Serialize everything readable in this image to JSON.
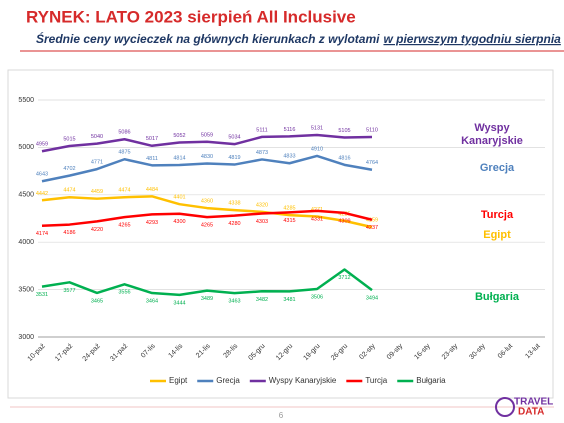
{
  "chart_data": {
    "type": "line",
    "title": "RYNEK: LATO 2023 sierpień All Inclusive",
    "subtitle": [
      "Średnie ceny wycieczek na głównych kierunkach z wylotami",
      "w pierwszym tygodniu sierpnia"
    ],
    "categories": [
      "10-paź",
      "17-paź",
      "24-paź",
      "31-paź",
      "07-lis",
      "14-lis",
      "21-lis",
      "28-lis",
      "05-gru",
      "12-gru",
      "19-gru",
      "26-gru",
      "02-sty",
      "09-sty",
      "16-sty",
      "23-sty",
      "30-sty",
      "06-lut",
      "13-lut"
    ],
    "series": [
      {
        "name": "Egipt",
        "color": "#ffc000",
        "values": [
          4442,
          4474,
          4459,
          4474,
          4484,
          4401,
          4360,
          4338,
          4320,
          4285,
          4271,
          4225,
          4159,
          null,
          null,
          null,
          null,
          null,
          null
        ]
      },
      {
        "name": "Grecja",
        "color": "#4f81bd",
        "values": [
          4643,
          4702,
          4771,
          4875,
          4811,
          4814,
          4830,
          4819,
          4873,
          4833,
          4910,
          4816,
          4764,
          null,
          null,
          null,
          null,
          null,
          null
        ]
      },
      {
        "name": "Wyspy Kanaryjskie",
        "color": "#7030a0",
        "values": [
          4959,
          5015,
          5040,
          5086,
          5017,
          5052,
          5059,
          5034,
          5111,
          5116,
          5131,
          5105,
          5110,
          null,
          null,
          null,
          null,
          null,
          null
        ]
      },
      {
        "name": "Turcja",
        "color": "#ff0000",
        "values": [
          4174,
          4186,
          4220,
          4265,
          4293,
          4300,
          4265,
          4280,
          4303,
          4315,
          4331,
          4309,
          4237,
          null,
          null,
          null,
          null,
          null,
          null
        ]
      },
      {
        "name": "Bułgaria",
        "color": "#00b050",
        "values": [
          3531,
          3577,
          3465,
          3556,
          3464,
          3444,
          3489,
          3463,
          3482,
          3481,
          3506,
          3712,
          3494,
          null,
          null,
          null,
          null,
          null,
          null
        ]
      }
    ],
    "ylim": [
      3000,
      5500
    ],
    "yticks": [
      3000,
      3500,
      4000,
      4500,
      5000,
      5500
    ],
    "grid": true,
    "legend": "bottom",
    "page_number": "6",
    "logo": [
      "TRAVEL",
      "DATA"
    ]
  }
}
